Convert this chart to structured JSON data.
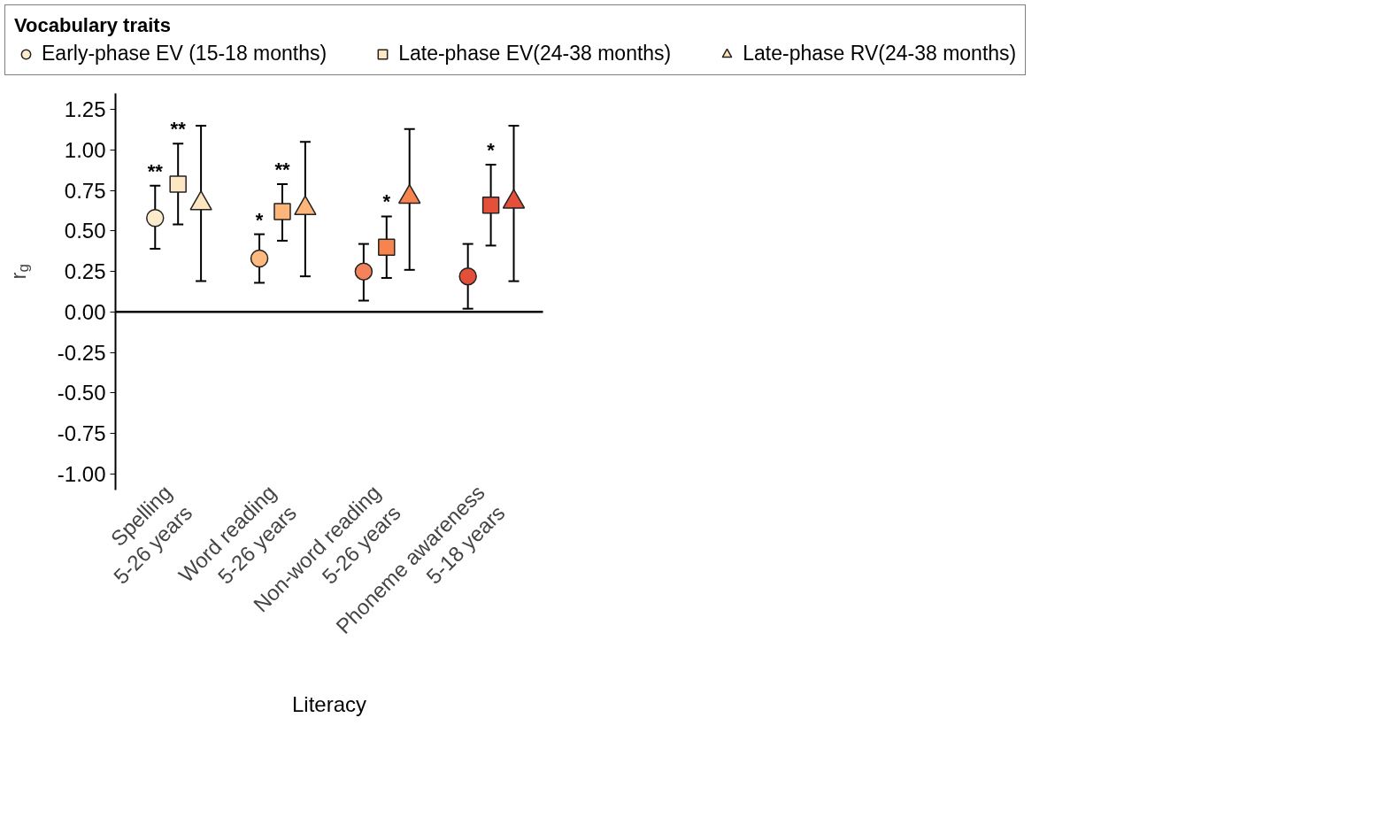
{
  "chart_data": {
    "type": "scatter",
    "xlabel": "Literacy",
    "ylabel": "r$_{g}$",
    "legend_title": "Vocabulary traits",
    "legend": "top",
    "categories": [
      "Spelling\n5-26 years",
      "Word reading\n5-26 years",
      "Non-word reading\n5-26 years",
      "Phoneme awareness\n5-18 years"
    ],
    "ylim": [
      -1.1,
      1.35
    ],
    "yticks": [
      {
        "value": 1.25,
        "label": "1.25"
      },
      {
        "value": 1.0,
        "label": "1.00"
      },
      {
        "value": 0.75,
        "label": "0.75"
      },
      {
        "value": 0.5,
        "label": "0.50"
      },
      {
        "value": 0.25,
        "label": "0.25"
      },
      {
        "value": 0,
        "label": "0.00"
      },
      {
        "value": -0.25,
        "label": "-0.25"
      },
      {
        "value": -0.5,
        "label": "-0.50"
      },
      {
        "value": -0.75,
        "label": "-0.75"
      },
      {
        "value": -1.0,
        "label": "-1.00"
      }
    ],
    "ref_lines": [
      {
        "axis": "y",
        "value": 0,
        "color": "#000000"
      }
    ],
    "series": [
      {
        "name": "Early-phase EV (15-18 months)",
        "marker": "circle",
        "colors": [
          "#fdeccc",
          "#fdb97e",
          "#f4835a",
          "#e3503a"
        ],
        "values": [
          0.58,
          0.33,
          0.25,
          0.22
        ],
        "errors": [
          [
            0.39,
            0.78
          ],
          [
            0.18,
            0.48
          ],
          [
            0.07,
            0.42
          ],
          [
            0.02,
            0.42
          ]
        ],
        "value_labels": [
          "**",
          "*",
          null,
          null
        ]
      },
      {
        "name": "Late-phase EV(24-38 months)",
        "marker": "square",
        "colors": [
          "#fde6c2",
          "#fdb57a",
          "#f7834f",
          "#e4503a"
        ],
        "values": [
          0.79,
          0.62,
          0.4,
          0.66
        ],
        "errors": [
          [
            0.54,
            1.04
          ],
          [
            0.44,
            0.79
          ],
          [
            0.21,
            0.59
          ],
          [
            0.41,
            0.91
          ]
        ],
        "value_labels": [
          "**",
          "**",
          "*",
          "*"
        ]
      },
      {
        "name": "Late-phase RV(24-38 months)",
        "marker": "triangle",
        "colors": [
          "#fde5c0",
          "#fdb57a",
          "#f7834f",
          "#e4503a"
        ],
        "values": [
          0.67,
          0.64,
          0.71,
          0.68
        ],
        "errors": [
          [
            0.19,
            1.15
          ],
          [
            0.22,
            1.05
          ],
          [
            0.26,
            1.13
          ],
          [
            0.19,
            1.15
          ]
        ],
        "value_labels": [
          null,
          null,
          null,
          null
        ]
      }
    ]
  }
}
